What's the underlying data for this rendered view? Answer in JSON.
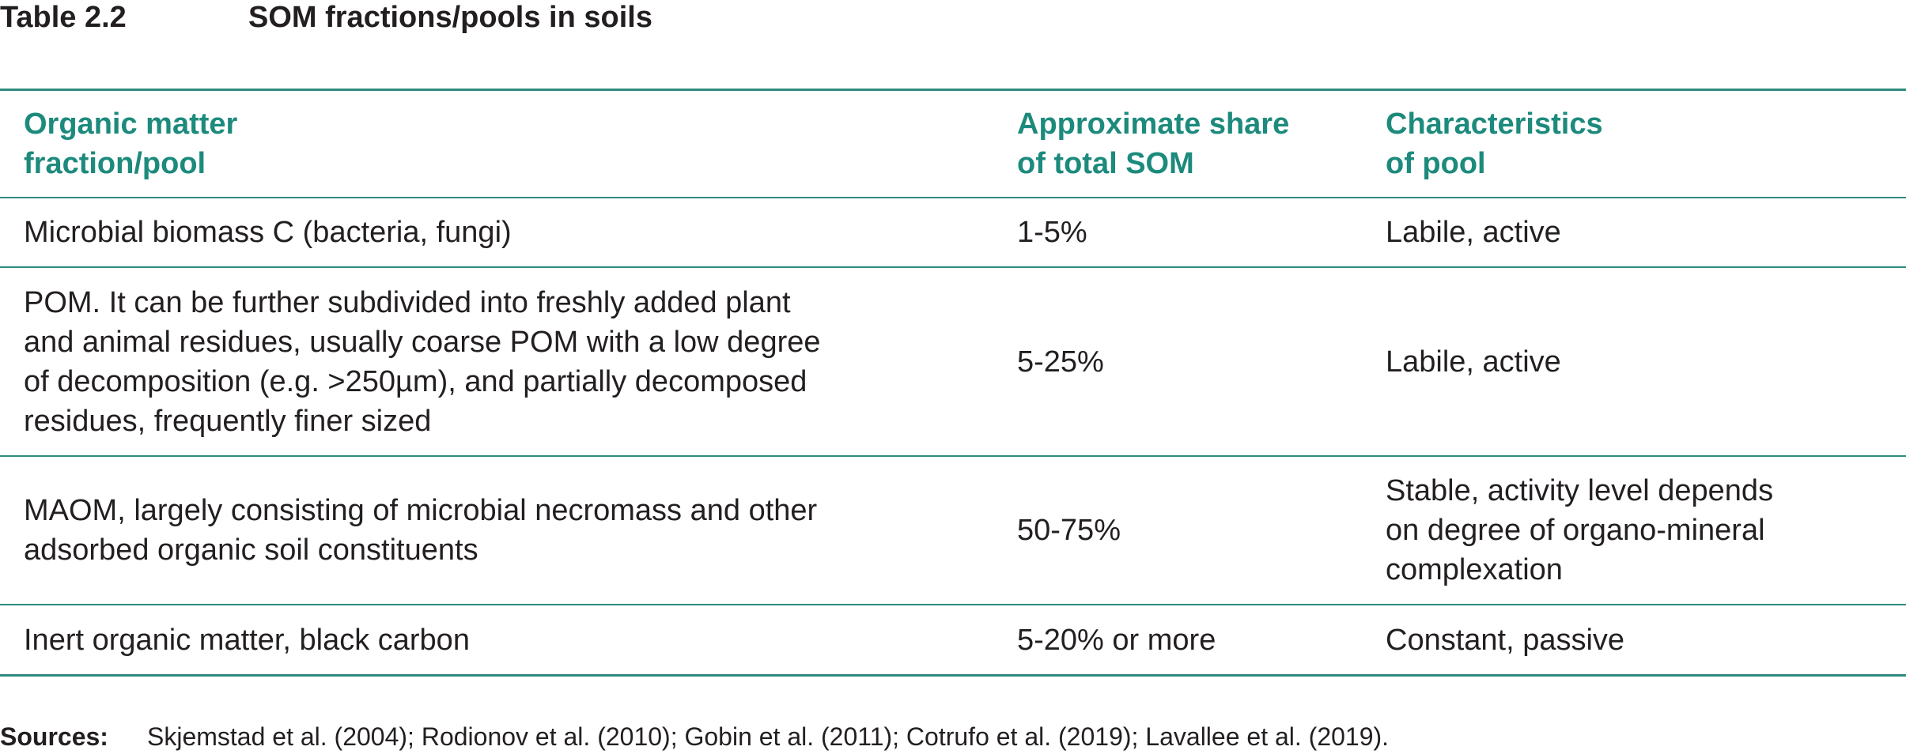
{
  "caption": {
    "number": "Table 2.2",
    "title": "SOM fractions/pools in soils"
  },
  "table": {
    "headers": [
      "Organic matter\nfraction/pool",
      "Approximate share\nof total SOM",
      "Characteristics\nof pool"
    ],
    "rows": [
      {
        "fraction": "Microbial biomass C (bacteria, fungi)",
        "share": "1-5%",
        "characteristics": "Labile, active"
      },
      {
        "fraction": "POM. It can be further subdivided into freshly added plant\nand animal residues, usually coarse POM with a low degree\nof decomposition (e.g. >250µm), and partially decomposed\nresidues, frequently finer sized",
        "share": "5-25%",
        "characteristics": "Labile, active"
      },
      {
        "fraction": "MAOM, largely consisting of microbial necromass and other\nadsorbed organic soil constituents",
        "share": "50-75%",
        "characteristics": "Stable, activity level depends\non degree of organo-mineral\ncomplexation"
      },
      {
        "fraction": "Inert organic matter, black carbon",
        "share": "5-20% or more",
        "characteristics": "Constant, passive"
      }
    ]
  },
  "sources": {
    "label": "Sources:",
    "text": "Skjemstad et al. (2004); Rodionov et al. (2010); Gobin et al. (2011); Cotrufo et al. (2019); Lavallee et al. (2019)."
  },
  "colors": {
    "accent": "#1c8a7c",
    "rule": "#2e8b7f",
    "text": "#231f20"
  }
}
